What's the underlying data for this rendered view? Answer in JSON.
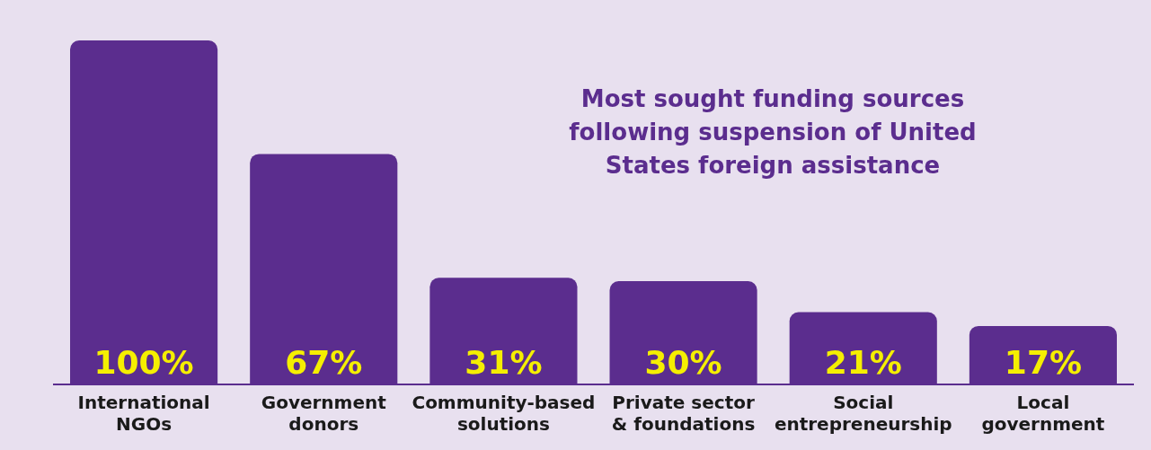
{
  "chart_data": {
    "type": "bar",
    "title": "Most sought funding sources following suspension of United States foreign assistance",
    "categories": [
      "International NGOs",
      "Government donors",
      "Community-based solutions",
      "Private sector & foundations",
      "Social entrepreneurship",
      "Local government"
    ],
    "values": [
      100,
      67,
      31,
      30,
      21,
      17
    ],
    "value_labels": [
      "100%",
      "67%",
      "31%",
      "30%",
      "21%",
      "17%"
    ],
    "color": "#5b2d8e",
    "grid": false,
    "legend": false
  }
}
